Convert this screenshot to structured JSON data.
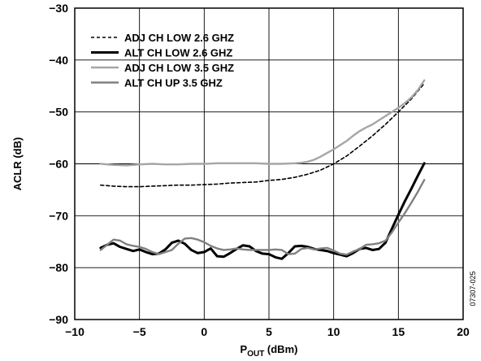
{
  "chart_data": {
    "type": "line",
    "xlabel_main": "P",
    "xlabel_sub": "OUT",
    "xlabel_rest": " (dBm)",
    "ylabel": "ACLR (dB)",
    "xlim": [
      -10,
      20
    ],
    "ylim": [
      -90,
      -30
    ],
    "xticks": [
      "−10",
      "−5",
      "0",
      "5",
      "10",
      "15",
      "20"
    ],
    "yticks": [
      "−30",
      "−40",
      "−50",
      "−60",
      "−70",
      "−80",
      "−90"
    ],
    "grid": true,
    "legend_position": "top-left",
    "figure_id": "07307-025",
    "series": [
      {
        "name": "ADJ CH LOW 2.6 GHZ",
        "color": "#000000",
        "style": "dashed",
        "x": [
          -8,
          -7,
          -6,
          -5,
          -4,
          -3,
          -2,
          -1,
          0,
          1,
          2,
          3,
          4,
          5,
          6,
          7,
          8,
          9,
          10,
          11,
          12,
          13,
          14,
          15,
          16,
          17
        ],
        "y": [
          -64.1,
          -64.3,
          -64.4,
          -64.4,
          -64.3,
          -64.2,
          -64.1,
          -64.1,
          -64.0,
          -63.9,
          -63.7,
          -63.6,
          -63.5,
          -63.2,
          -63.0,
          -62.6,
          -62.0,
          -61.2,
          -60.0,
          -58.5,
          -56.6,
          -54.6,
          -52.4,
          -50.0,
          -47.5,
          -44.5
        ]
      },
      {
        "name": "ALT CH LOW 2.6 GHZ",
        "color": "#000000",
        "style": "solid-thick",
        "x": [
          -8,
          -7.5,
          -7,
          -6.5,
          -6,
          -5.5,
          -5,
          -4.5,
          -4,
          -3.5,
          -3,
          -2.5,
          -2,
          -1.5,
          -1,
          -0.5,
          0,
          0.5,
          1,
          1.5,
          2,
          2.5,
          3,
          3.5,
          4,
          4.5,
          5,
          5.5,
          6,
          6.5,
          7,
          7.5,
          8,
          8.5,
          9,
          9.5,
          10,
          10.5,
          11,
          11.5,
          12,
          12.5,
          13,
          13.5,
          14,
          14.5,
          15,
          15.5,
          16,
          16.5,
          17
        ],
        "y": [
          -76.2,
          -75.6,
          -75.3,
          -76.0,
          -76.4,
          -76.8,
          -76.5,
          -77.0,
          -77.4,
          -77.3,
          -76.5,
          -75.2,
          -74.8,
          -75.4,
          -76.6,
          -77.2,
          -77.0,
          -76.3,
          -77.8,
          -77.9,
          -77.2,
          -76.4,
          -75.7,
          -75.9,
          -76.8,
          -77.3,
          -77.4,
          -78.0,
          -78.3,
          -77.2,
          -75.9,
          -75.8,
          -76.0,
          -76.4,
          -76.6,
          -76.8,
          -77.2,
          -77.5,
          -77.8,
          -77.2,
          -76.4,
          -76.2,
          -76.6,
          -76.4,
          -75.2,
          -72.5,
          -69.8,
          -67.2,
          -64.8,
          -62.3,
          -59.9
        ]
      },
      {
        "name": "ADJ CH LOW 3.5 GHZ",
        "color": "#a6a6a6",
        "style": "solid",
        "x": [
          -8,
          -7,
          -6,
          -5,
          -4,
          -3,
          -2,
          -1,
          0,
          1,
          2,
          3,
          4,
          5,
          6,
          7,
          7.5,
          8,
          8.5,
          9,
          9.5,
          10,
          10.5,
          11,
          11.5,
          12,
          12.5,
          13,
          13.5,
          14,
          14.5,
          15,
          15.5,
          16,
          16.5,
          17
        ],
        "y": [
          -60.0,
          -60.2,
          -60.3,
          -60.1,
          -60.0,
          -60.1,
          -60.1,
          -60.0,
          -60.0,
          -59.9,
          -59.9,
          -59.9,
          -59.9,
          -60.0,
          -60.0,
          -59.9,
          -59.8,
          -59.6,
          -59.2,
          -58.6,
          -57.9,
          -57.2,
          -56.4,
          -55.6,
          -54.6,
          -53.7,
          -53.0,
          -52.4,
          -51.6,
          -50.8,
          -50.0,
          -49.2,
          -48.3,
          -47.2,
          -45.8,
          -43.9
        ]
      },
      {
        "name": "ALT CH UP 3.5 GHZ",
        "color": "#808080",
        "style": "solid",
        "x": [
          -8,
          -7.5,
          -7,
          -6.5,
          -6,
          -5.5,
          -5,
          -4.5,
          -4,
          -3.5,
          -3,
          -2.5,
          -2,
          -1.5,
          -1,
          -0.5,
          0,
          0.5,
          1,
          1.5,
          2,
          2.5,
          3,
          3.5,
          4,
          4.5,
          5,
          5.5,
          6,
          6.5,
          7,
          7.5,
          8,
          8.5,
          9,
          9.5,
          10,
          10.5,
          11,
          11.5,
          12,
          12.5,
          13,
          13.5,
          14,
          14.5,
          15,
          15.5,
          16,
          16.5,
          17
        ],
        "y": [
          -76.6,
          -75.6,
          -74.6,
          -74.8,
          -75.5,
          -75.8,
          -76.0,
          -76.4,
          -77.0,
          -77.4,
          -77.0,
          -76.6,
          -75.4,
          -74.4,
          -74.3,
          -74.6,
          -75.1,
          -75.8,
          -76.3,
          -76.6,
          -76.5,
          -76.3,
          -76.5,
          -76.6,
          -76.6,
          -76.6,
          -76.6,
          -76.5,
          -76.6,
          -77.4,
          -77.3,
          -76.4,
          -76.2,
          -76.5,
          -76.3,
          -76.2,
          -76.7,
          -77.3,
          -77.5,
          -76.9,
          -76.4,
          -75.6,
          -75.5,
          -75.3,
          -74.8,
          -73.2,
          -71.3,
          -69.5,
          -67.5,
          -65.4,
          -63.1
        ]
      }
    ]
  }
}
